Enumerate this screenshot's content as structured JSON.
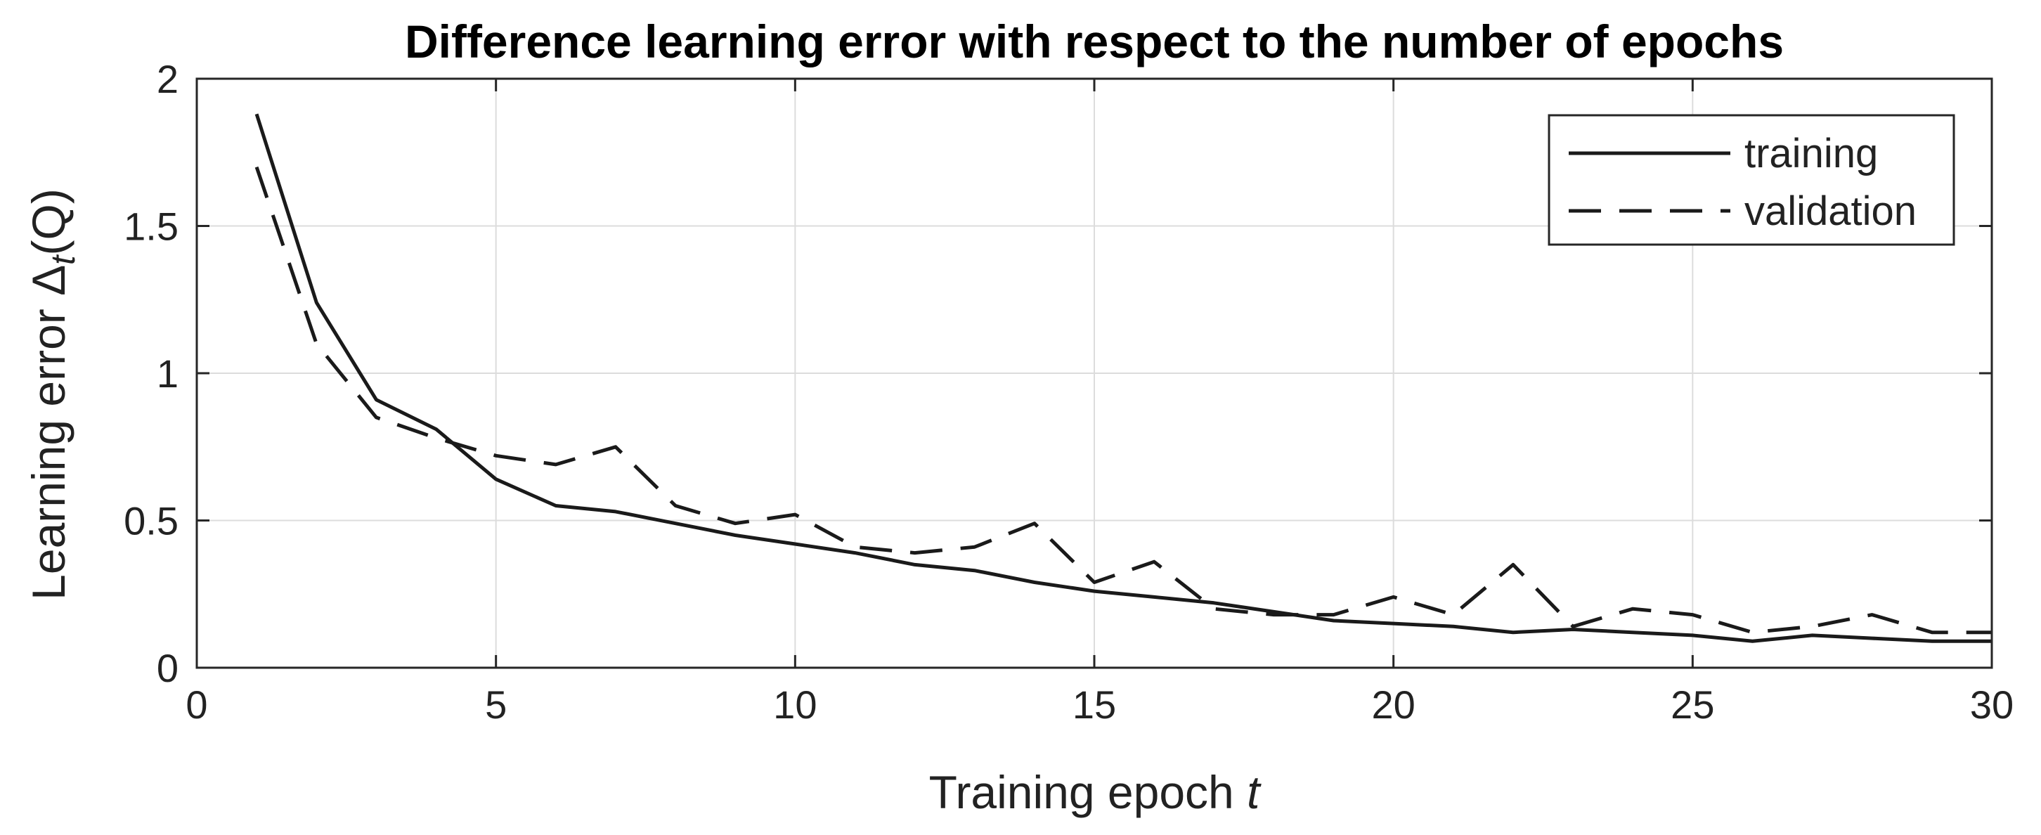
{
  "chart_data": {
    "type": "line",
    "title": "Difference learning error with respect to the number of epochs",
    "xlabel": {
      "prefix": "Training epoch ",
      "var": "t"
    },
    "ylabel": {
      "prefix": "Learning error  ",
      "symbol": "Δ",
      "subscript": "t",
      "suffix": "(Q)"
    },
    "xlim": [
      0,
      30
    ],
    "ylim": [
      0,
      2
    ],
    "xticks": [
      "0",
      "5",
      "10",
      "15",
      "20",
      "25",
      "30"
    ],
    "yticks": [
      "0",
      "0.5",
      "1",
      "1.5",
      "2"
    ],
    "grid": true,
    "legend_position": "top-right",
    "x": [
      1,
      2,
      3,
      4,
      5,
      6,
      7,
      8,
      9,
      10,
      11,
      12,
      13,
      14,
      15,
      16,
      17,
      18,
      19,
      20,
      21,
      22,
      23,
      24,
      25,
      26,
      27,
      28,
      29,
      30
    ],
    "series": [
      {
        "name": "training",
        "style": "solid",
        "color": "#1a1a1a",
        "values": [
          1.88,
          1.24,
          0.91,
          0.81,
          0.64,
          0.55,
          0.53,
          0.49,
          0.45,
          0.42,
          0.39,
          0.35,
          0.33,
          0.29,
          0.26,
          0.24,
          0.22,
          0.19,
          0.16,
          0.15,
          0.14,
          0.12,
          0.13,
          0.12,
          0.11,
          0.09,
          0.11,
          0.1,
          0.09,
          0.09
        ]
      },
      {
        "name": "validation",
        "style": "dashed",
        "color": "#1a1a1a",
        "values": [
          1.7,
          1.1,
          0.85,
          0.78,
          0.72,
          0.69,
          0.75,
          0.55,
          0.49,
          0.52,
          0.41,
          0.39,
          0.41,
          0.49,
          0.29,
          0.36,
          0.2,
          0.18,
          0.18,
          0.24,
          0.18,
          0.35,
          0.14,
          0.2,
          0.18,
          0.12,
          0.14,
          0.18,
          0.12,
          0.12
        ]
      }
    ]
  }
}
